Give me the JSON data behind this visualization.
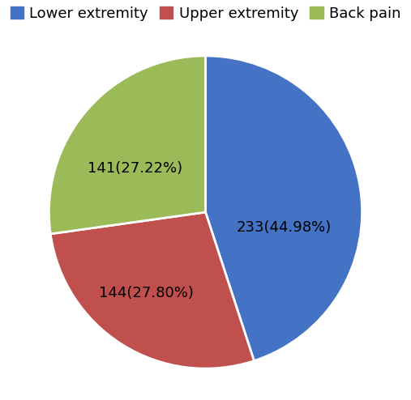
{
  "labels": [
    "Lower extremity",
    "Upper extremity",
    "Back pain"
  ],
  "values": [
    233,
    144,
    141
  ],
  "colors": [
    "#4472C4",
    "#C0504D",
    "#9BBB59"
  ],
  "legend_labels": [
    "Lower extremity",
    "Upper extremity",
    "Back pain"
  ],
  "label_texts": [
    "233(44.98%)",
    "144(27.80%)",
    "141(27.22%)"
  ],
  "startangle": 90,
  "text_fontsize": 13,
  "legend_fontsize": 13,
  "wedge_edgecolor": "white",
  "wedge_linewidth": 2.0
}
